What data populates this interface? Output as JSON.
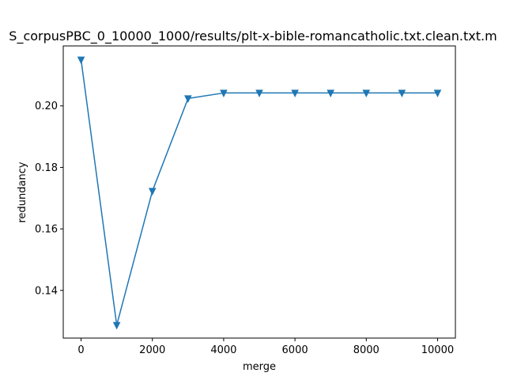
{
  "chart_data": {
    "type": "line",
    "title": "S_corpusPBC_0_10000_1000/results/plt-x-bible-romancatholic.txt.clean.txt.m",
    "xlabel": "merge",
    "ylabel": "redundancy",
    "xlim": [
      -500,
      10500
    ],
    "ylim": [
      0.1245,
      0.2195
    ],
    "xticks": [
      0,
      2000,
      4000,
      6000,
      8000,
      10000
    ],
    "xtick_labels": [
      "0",
      "2000",
      "4000",
      "6000",
      "8000",
      "10000"
    ],
    "yticks": [
      0.14,
      0.16,
      0.18,
      0.2
    ],
    "ytick_labels": [
      "0.14",
      "0.16",
      "0.18",
      "0.20"
    ],
    "grid": false,
    "series": [
      {
        "color": "#1f77b4",
        "marker": "triangle-down",
        "x": [
          0,
          1000,
          2000,
          3000,
          4000,
          5000,
          6000,
          7000,
          8000,
          9000,
          10000
        ],
        "y": [
          0.215,
          0.1287,
          0.1723,
          0.2024,
          0.2042,
          0.2042,
          0.2042,
          0.2042,
          0.2042,
          0.2042,
          0.2042
        ]
      }
    ]
  }
}
